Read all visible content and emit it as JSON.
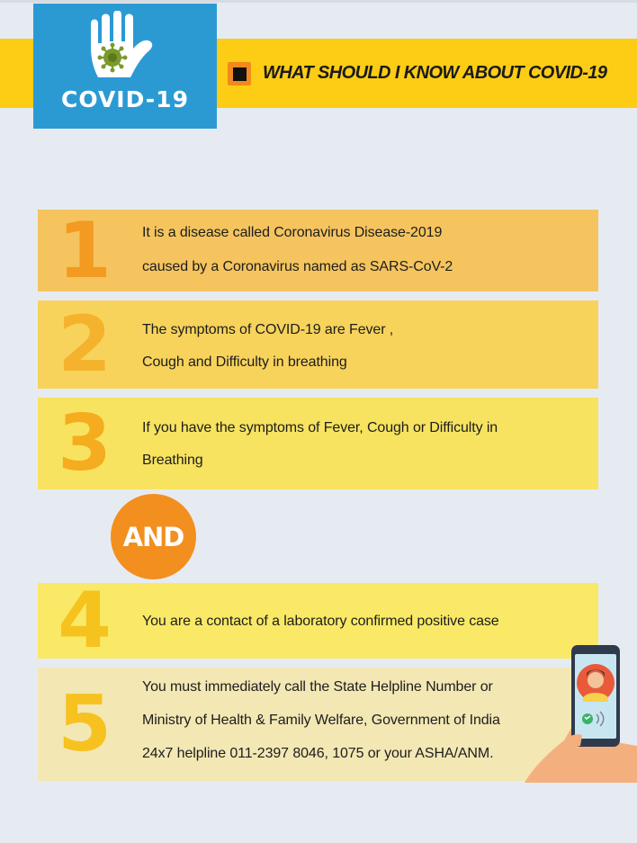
{
  "logo": {
    "text": "COVID-19",
    "icon": "virus-hand-icon"
  },
  "header": {
    "title": "WHAT SHOULD I KNOW ABOUT COVID-19",
    "bullet_icon": "square-bullet-icon"
  },
  "colors": {
    "page_bg": "#e6ebf2",
    "band_yellow": "#fdcc14",
    "logo_blue": "#2b9ad3",
    "accent_orange": "#f38f1e"
  },
  "items": [
    {
      "number": "1",
      "lines": [
        "It is a disease called Coronavirus Disease-2019",
        "caused by a Coronavirus named as SARS-CoV-2"
      ]
    },
    {
      "number": "2",
      "lines": [
        "The symptoms of COVID-19 are Fever ,",
        "Cough and Difficulty in breathing"
      ]
    },
    {
      "number": "3",
      "lines": [
        "If you have the symptoms of Fever, Cough or Difficulty in",
        "Breathing"
      ]
    },
    {
      "number": "4",
      "lines": [
        "You are a contact of a laboratory confirmed positive case"
      ]
    },
    {
      "number": "5",
      "lines": [
        "You must immediately call the State Helpline Number or",
        "Ministry of Health & Family Welfare, Government of India",
        "24x7 helpline 011-2397 8046, 1075 or your ASHA/ANM."
      ]
    }
  ],
  "connector": {
    "label": "AND"
  },
  "illustration": {
    "icon": "hand-holding-phone-icon"
  }
}
